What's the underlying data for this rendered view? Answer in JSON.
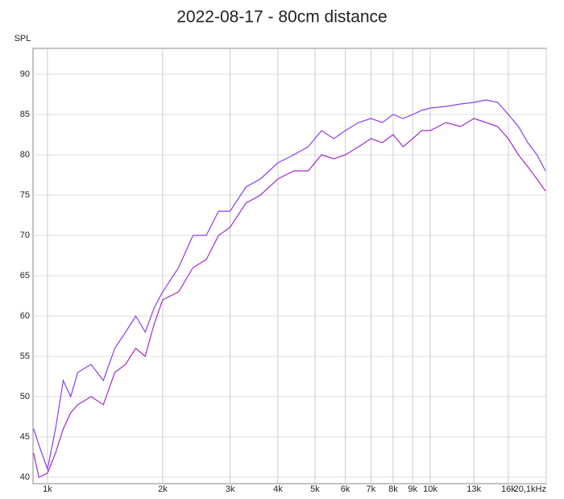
{
  "chart_data": {
    "type": "line",
    "title": "2022-08-17 - 80cm distance",
    "y_label": "SPL",
    "log_x": true,
    "grid": true,
    "x": [
      920,
      950,
      1000,
      1050,
      1100,
      1150,
      1200,
      1300,
      1400,
      1500,
      1600,
      1700,
      1800,
      1900,
      2000,
      2200,
      2400,
      2600,
      2800,
      3000,
      3300,
      3600,
      4000,
      4400,
      4800,
      5200,
      5600,
      6000,
      6500,
      7000,
      7500,
      8000,
      8500,
      9000,
      9500,
      10000,
      11000,
      12000,
      13000,
      14000,
      15000,
      16000,
      17000,
      18000,
      19000,
      20000
    ],
    "series": [
      {
        "color": "#8a3ff0",
        "values": [
          46,
          44,
          41,
          46,
          52,
          50,
          53,
          54,
          52,
          56,
          58,
          60,
          58,
          61,
          63,
          66,
          70,
          70,
          73,
          73,
          76,
          77,
          79,
          80,
          81,
          83,
          82,
          83,
          84,
          84.5,
          84,
          85,
          84.5,
          85,
          85.5,
          85.8,
          86,
          86.3,
          86.5,
          86.8,
          86.5,
          85,
          83.5,
          81.5,
          80,
          78
        ]
      },
      {
        "color": "#a52bc8",
        "values": [
          43,
          40,
          40.5,
          43,
          46,
          48,
          49,
          50,
          49,
          53,
          54,
          56,
          55,
          59,
          62,
          63,
          66,
          67,
          70,
          71,
          74,
          75,
          77,
          78,
          78,
          80,
          79.5,
          80,
          81,
          82,
          81.5,
          82.5,
          81,
          82,
          83,
          83,
          84,
          83.5,
          84.5,
          84,
          83.5,
          82,
          80,
          78.5,
          77,
          75.5
        ]
      }
    ],
    "xlim": [
      917,
      20100
    ],
    "ylim": [
      39.2,
      93.2
    ],
    "yticks": [
      40,
      45,
      50,
      55,
      60,
      65,
      70,
      75,
      80,
      85,
      90
    ],
    "xticks": [
      {
        "value": 1000,
        "label": "1k"
      },
      {
        "value": 2000,
        "label": "2k"
      },
      {
        "value": 3000,
        "label": "3k"
      },
      {
        "value": 4000,
        "label": "4k"
      },
      {
        "value": 5000,
        "label": "5k"
      },
      {
        "value": 6000,
        "label": "6k"
      },
      {
        "value": 7000,
        "label": "7k"
      },
      {
        "value": 8000,
        "label": "8k"
      },
      {
        "value": 9000,
        "label": "9k"
      },
      {
        "value": 10000,
        "label": "10k"
      },
      {
        "value": 13000,
        "label": "13k"
      },
      {
        "value": 16000,
        "label": "16k"
      },
      {
        "value": 20100,
        "label": "20,1kHz"
      }
    ]
  }
}
